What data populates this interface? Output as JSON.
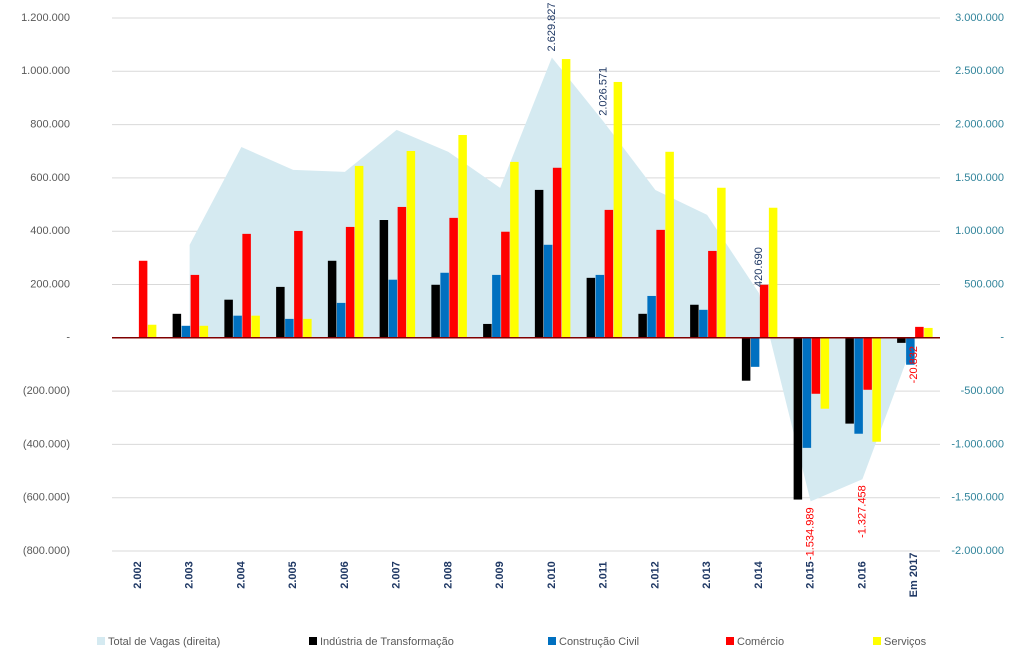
{
  "chart_data": {
    "type": "bar",
    "categories": [
      "2.002",
      "2.003",
      "2.004",
      "2.005",
      "2.006",
      "2.007",
      "2.008",
      "2.009",
      "2.010",
      "2.011",
      "2.012",
      "2.013",
      "2.014",
      "2.015",
      "2.016",
      "Em 2017"
    ],
    "series": [
      {
        "name": "Total de Vagas (direita)",
        "type": "area",
        "axis": "y2",
        "color": "#d5eaf1",
        "values": [
          null,
          872000,
          1790000,
          1575000,
          1556000,
          1950000,
          1744000,
          1406000,
          2629827,
          2026571,
          1387000,
          1153000,
          420690,
          -1534989,
          -1327458,
          -20832
        ],
        "value_labels": [
          null,
          null,
          null,
          null,
          null,
          null,
          null,
          null,
          "2.629.827",
          "2.026.571",
          null,
          null,
          "420.690",
          "-1.534.989",
          "-1.327.458",
          "-20.832"
        ]
      },
      {
        "name": "Indústria de Transformação",
        "color": "#000000",
        "values": [
          null,
          90000,
          143000,
          191000,
          289000,
          442000,
          199000,
          52000,
          555000,
          225000,
          90000,
          124000,
          -161000,
          -607000,
          -322000,
          -19000
        ]
      },
      {
        "name": "Construção Civil",
        "color": "#0070c0",
        "values": [
          null,
          45000,
          83000,
          71000,
          131000,
          218000,
          244000,
          236000,
          349000,
          236000,
          157000,
          105000,
          -109000,
          -413000,
          -360000,
          -101000
        ]
      },
      {
        "name": "Comércio",
        "color": "#ff0000",
        "values": [
          289000,
          236000,
          390000,
          401000,
          416000,
          491000,
          450000,
          398000,
          638000,
          480000,
          405000,
          326000,
          199000,
          -210000,
          -195000,
          41000
        ]
      },
      {
        "name": "Serviços",
        "color": "#ffff00",
        "values": [
          49000,
          45000,
          83000,
          71000,
          645000,
          701000,
          761000,
          660000,
          1046000,
          960000,
          698000,
          563000,
          488000,
          -266000,
          -390000,
          37000
        ]
      }
    ],
    "ylim": [
      -800000,
      1200000
    ],
    "yticks": [
      {
        "value": -800000,
        "label": "(800.000)"
      },
      {
        "value": -600000,
        "label": "(600.000)"
      },
      {
        "value": -400000,
        "label": "(400.000)"
      },
      {
        "value": -200000,
        "label": "(200.000)"
      },
      {
        "value": 0,
        "label": "-"
      },
      {
        "value": 200000,
        "label": "200.000"
      },
      {
        "value": 400000,
        "label": "400.000"
      },
      {
        "value": 600000,
        "label": "600.000"
      },
      {
        "value": 800000,
        "label": "800.000"
      },
      {
        "value": 1000000,
        "label": "1.000.000"
      },
      {
        "value": 1200000,
        "label": "1.200.000"
      }
    ],
    "y2lim": [
      -2000000,
      3000000
    ],
    "y2ticks": [
      {
        "value": -2000000,
        "label": "-2.000.000"
      },
      {
        "value": -1500000,
        "label": "-1.500.000"
      },
      {
        "value": -1000000,
        "label": "-1.000.000"
      },
      {
        "value": -500000,
        "label": "-500.000"
      },
      {
        "value": 0,
        "label": "-"
      },
      {
        "value": 500000,
        "label": "500.000"
      },
      {
        "value": 1000000,
        "label": "1.000.000"
      },
      {
        "value": 1500000,
        "label": "1.500.000"
      },
      {
        "value": 2000000,
        "label": "2.000.000"
      },
      {
        "value": 2500000,
        "label": "2.500.000"
      },
      {
        "value": 3000000,
        "label": "3.000.000"
      }
    ],
    "grid": true,
    "legend": "bottom"
  }
}
